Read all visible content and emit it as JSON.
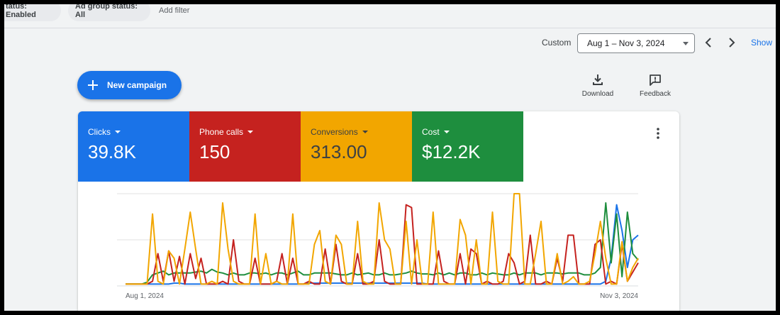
{
  "filters": {
    "campaign_status": "tatus: Enabled",
    "ad_group_status": "Ad group status: All",
    "add_filter": "Add filter"
  },
  "date_range": {
    "label": "Custom",
    "value": "Aug 1 – Nov 3, 2024",
    "show": "Show"
  },
  "actions": {
    "new_campaign": "New campaign",
    "download": "Download",
    "feedback": "Feedback"
  },
  "metrics": [
    {
      "label": "Clicks",
      "value": "39.8K",
      "color": "#1a73e8",
      "text_color": "#ffffff"
    },
    {
      "label": "Phone calls",
      "value": "150",
      "color": "#c5221f",
      "text_color": "#ffffff"
    },
    {
      "label": "Conversions",
      "value": "313.00",
      "color": "#f2a600",
      "text_color": "#3c4043"
    },
    {
      "label": "Cost",
      "value": "$12.2K",
      "color": "#1e8e3e",
      "text_color": "#ffffff"
    }
  ],
  "chart_data": {
    "type": "line",
    "x_start": "Aug 1, 2024",
    "x_end": "Nov 3, 2024",
    "ylim": [
      0,
      100
    ],
    "grid": true,
    "series": [
      {
        "color": "#1a73e8",
        "values": [
          2,
          2,
          2,
          2,
          2,
          2,
          2,
          2,
          2,
          3,
          3,
          2,
          2,
          2,
          2,
          2,
          2,
          2,
          2,
          2,
          2,
          2,
          2,
          2,
          2,
          2,
          2,
          2,
          2,
          2,
          2,
          2,
          2,
          2,
          3,
          3,
          3,
          3,
          3,
          3,
          3,
          3,
          3,
          3,
          3,
          3,
          3,
          3,
          3,
          3,
          3,
          3,
          3,
          3,
          3,
          3,
          2,
          2,
          2,
          2,
          2,
          2,
          2,
          2,
          2,
          2,
          2,
          2,
          2,
          2,
          2,
          2,
          2,
          2,
          2,
          2,
          2,
          2,
          2,
          2,
          2,
          2,
          2,
          2,
          2,
          2,
          2,
          2,
          2,
          5,
          30,
          88,
          60,
          20,
          50,
          55
        ]
      },
      {
        "color": "#1e8e3e",
        "values": [
          2,
          2,
          2,
          2,
          4,
          12,
          14,
          16,
          12,
          14,
          14,
          14,
          14,
          15,
          16,
          14,
          18,
          15,
          14,
          12,
          14,
          12,
          12,
          14,
          14,
          13,
          14,
          12,
          14,
          14,
          12,
          14,
          16,
          12,
          12,
          14,
          14,
          14,
          14,
          13,
          12,
          12,
          14,
          12,
          13,
          14,
          12,
          12,
          14,
          12,
          12,
          13,
          14,
          16,
          14,
          13,
          13,
          12,
          14,
          12,
          14,
          12,
          14,
          14,
          12,
          12,
          14,
          12,
          14,
          13,
          12,
          12,
          14,
          12,
          14,
          14,
          14,
          12,
          14,
          14,
          14,
          13,
          14,
          14,
          14,
          12,
          12,
          14,
          20,
          90,
          25,
          78,
          10,
          80,
          35,
          28
        ]
      },
      {
        "color": "#c5221f",
        "values": [
          2,
          2,
          2,
          2,
          2,
          5,
          35,
          5,
          38,
          5,
          32,
          2,
          35,
          8,
          30,
          2,
          2,
          2,
          5,
          2,
          50,
          5,
          2,
          2,
          30,
          2,
          2,
          2,
          5,
          35,
          2,
          30,
          2,
          2,
          5,
          2,
          2,
          40,
          2,
          45,
          5,
          2,
          2,
          35,
          2,
          2,
          5,
          50,
          5,
          2,
          2,
          2,
          88,
          85,
          2,
          2,
          2,
          2,
          38,
          5,
          2,
          2,
          35,
          2,
          40,
          35,
          2,
          5,
          2,
          2,
          5,
          35,
          25,
          2,
          5,
          55,
          2,
          2,
          5,
          2,
          30,
          5,
          55,
          55,
          2,
          2,
          2,
          45,
          50,
          2,
          5,
          2,
          45,
          5,
          15,
          25
        ]
      },
      {
        "color": "#f2a600",
        "values": [
          2,
          2,
          2,
          2,
          2,
          78,
          5,
          2,
          38,
          30,
          2,
          40,
          80,
          40,
          2,
          2,
          5,
          2,
          90,
          40,
          5,
          2,
          2,
          2,
          78,
          2,
          35,
          2,
          5,
          2,
          2,
          78,
          2,
          2,
          2,
          45,
          60,
          5,
          2,
          55,
          45,
          2,
          2,
          70,
          5,
          2,
          2,
          90,
          50,
          40,
          2,
          2,
          70,
          2,
          50,
          2,
          2,
          80,
          2,
          2,
          2,
          2,
          72,
          55,
          2,
          50,
          2,
          2,
          80,
          5,
          2,
          2,
          100,
          100,
          2,
          2,
          35,
          70,
          2,
          2,
          35,
          2,
          5,
          10,
          2,
          2,
          5,
          35,
          70,
          30,
          2,
          2,
          48,
          5,
          20,
          30
        ]
      }
    ]
  }
}
